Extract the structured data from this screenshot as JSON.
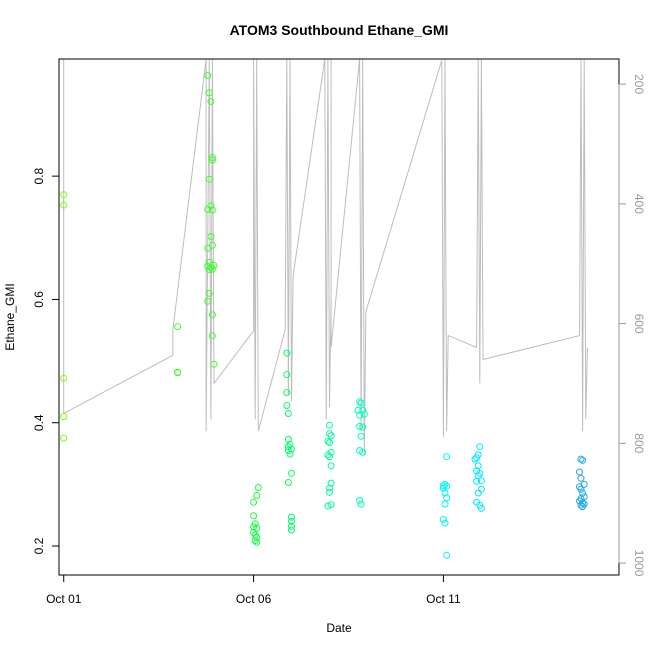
{
  "chart_data": {
    "type": "scatter",
    "title": "ATOM3 Southbound Ethane_GMI",
    "xlabel": "Date",
    "ylabel": "Ethane_GMI",
    "xlim": [
      "2017-09-30T21:00",
      "2017-10-15T15:00"
    ],
    "ylim": [
      0.153,
      0.99
    ],
    "x_ticks": [
      {
        "date": "2017-10-01",
        "label": "Oct 01"
      },
      {
        "date": "2017-10-06",
        "label": "Oct 06"
      },
      {
        "date": "2017-10-11",
        "label": "Oct 11"
      }
    ],
    "y_ticks": [
      0.2,
      0.4,
      0.6,
      0.8
    ],
    "y2_ticks": [
      200,
      400,
      600,
      800,
      1000
    ],
    "y2lim": [
      158,
      1020
    ],
    "grid": false,
    "legend": "none",
    "colors": {
      "oct01": "#7fff00",
      "oct04": "#3aff2a",
      "oct06": "#14ff40",
      "oct07": "#00ff66",
      "oct08": "#00ff99",
      "oct09": "#00ffbb",
      "oct11": "#00f7f7",
      "oct12": "#00e8ff",
      "oct15": "#1ca8e8",
      "pressure_line": "#bdbdbd"
    },
    "point_groups": [
      {
        "color_key": "oct01",
        "points": [
          [
            "2017-10-01T00:00",
            0.77
          ],
          [
            "2017-10-01T00:00",
            0.753
          ],
          [
            "2017-10-01T00:00",
            0.472
          ],
          [
            "2017-10-01T00:00",
            0.41
          ],
          [
            "2017-10-01T00:00",
            0.375
          ]
        ]
      },
      {
        "color_key": "oct04",
        "points": [
          [
            "2017-10-04T00:00",
            0.556
          ],
          [
            "2017-10-04T00:00",
            0.482
          ],
          [
            "2017-10-04T00:00",
            0.481
          ]
        ]
      },
      {
        "color_key": "oct04",
        "points": [
          [
            "2017-10-04T19:00",
            0.963
          ],
          [
            "2017-10-04T20:00",
            0.935
          ],
          [
            "2017-10-04T21:00",
            0.921
          ],
          [
            "2017-10-04T22:00",
            0.83
          ],
          [
            "2017-10-04T22:00",
            0.826
          ],
          [
            "2017-10-04T20:00",
            0.795
          ],
          [
            "2017-10-04T21:00",
            0.752
          ],
          [
            "2017-10-04T19:00",
            0.746
          ],
          [
            "2017-10-04T22:00",
            0.745
          ],
          [
            "2017-10-04T21:00",
            0.702
          ],
          [
            "2017-10-04T22:00",
            0.688
          ],
          [
            "2017-10-04T19:00",
            0.683
          ],
          [
            "2017-10-04T20:00",
            0.66
          ],
          [
            "2017-10-04T19:00",
            0.654
          ],
          [
            "2017-10-04T20:00",
            0.648
          ],
          [
            "2017-10-04T21:00",
            0.652
          ],
          [
            "2017-10-04T22:00",
            0.649
          ],
          [
            "2017-10-04T23:00",
            0.655
          ],
          [
            "2017-10-04T20:00",
            0.61
          ],
          [
            "2017-10-04T19:00",
            0.597
          ],
          [
            "2017-10-04T22:00",
            0.575
          ],
          [
            "2017-10-04T22:00",
            0.541
          ],
          [
            "2017-10-04T23:00",
            0.495
          ]
        ]
      },
      {
        "color_key": "oct06",
        "points": [
          [
            "2017-10-06T03:00",
            0.295
          ],
          [
            "2017-10-06T02:00",
            0.282
          ],
          [
            "2017-10-06T00:00",
            0.271
          ],
          [
            "2017-10-06T00:00",
            0.249
          ],
          [
            "2017-10-06T01:00",
            0.236
          ],
          [
            "2017-10-06T00:00",
            0.231
          ],
          [
            "2017-10-06T02:00",
            0.229
          ],
          [
            "2017-10-06T00:00",
            0.222
          ],
          [
            "2017-10-06T01:00",
            0.218
          ],
          [
            "2017-10-06T02:00",
            0.214
          ],
          [
            "2017-10-06T01:00",
            0.209
          ],
          [
            "2017-10-06T02:00",
            0.206
          ]
        ]
      },
      {
        "color_key": "oct07",
        "points": [
          [
            "2017-10-06T21:00",
            0.513
          ],
          [
            "2017-10-06T21:00",
            0.478
          ],
          [
            "2017-10-06T21:00",
            0.449
          ],
          [
            "2017-10-06T21:00",
            0.428
          ],
          [
            "2017-10-06T22:00",
            0.415
          ],
          [
            "2017-10-06T22:00",
            0.373
          ],
          [
            "2017-10-06T23:00",
            0.365
          ],
          [
            "2017-10-06T22:00",
            0.361
          ],
          [
            "2017-10-06T22:00",
            0.355
          ],
          [
            "2017-10-06T23:00",
            0.349
          ],
          [
            "2017-10-07T00:00",
            0.357
          ],
          [
            "2017-10-07T00:00",
            0.318
          ],
          [
            "2017-10-06T22:00",
            0.303
          ],
          [
            "2017-10-07T00:00",
            0.247
          ],
          [
            "2017-10-07T00:00",
            0.24
          ],
          [
            "2017-10-07T00:00",
            0.232
          ],
          [
            "2017-10-07T00:00",
            0.226
          ]
        ]
      },
      {
        "color_key": "oct08",
        "points": [
          [
            "2017-10-08T00:00",
            0.396
          ],
          [
            "2017-10-08T00:00",
            0.382
          ],
          [
            "2017-10-08T01:00",
            0.379
          ],
          [
            "2017-10-07T23:00",
            0.37
          ],
          [
            "2017-10-08T00:00",
            0.368
          ],
          [
            "2017-10-08T01:00",
            0.352
          ],
          [
            "2017-10-07T23:00",
            0.348
          ],
          [
            "2017-10-08T00:00",
            0.345
          ],
          [
            "2017-10-08T01:00",
            0.33
          ],
          [
            "2017-10-08T01:00",
            0.302
          ],
          [
            "2017-10-08T00:00",
            0.294
          ],
          [
            "2017-10-08T00:00",
            0.287
          ],
          [
            "2017-10-08T01:00",
            0.267
          ],
          [
            "2017-10-07T23:00",
            0.265
          ]
        ]
      },
      {
        "color_key": "oct09",
        "points": [
          [
            "2017-10-08T19:00",
            0.434
          ],
          [
            "2017-10-08T20:00",
            0.432
          ],
          [
            "2017-10-08T18:00",
            0.42
          ],
          [
            "2017-10-08T21:00",
            0.42
          ],
          [
            "2017-10-08T19:00",
            0.412
          ],
          [
            "2017-10-08T22:00",
            0.414
          ],
          [
            "2017-10-08T19:00",
            0.394
          ],
          [
            "2017-10-08T21:00",
            0.393
          ],
          [
            "2017-10-08T20:00",
            0.378
          ],
          [
            "2017-10-08T19:00",
            0.355
          ],
          [
            "2017-10-08T21:00",
            0.352
          ],
          [
            "2017-10-08T19:00",
            0.274
          ],
          [
            "2017-10-08T20:00",
            0.268
          ]
        ]
      },
      {
        "color_key": "oct11",
        "points": [
          [
            "2017-10-11T02:00",
            0.345
          ],
          [
            "2017-10-11T01:00",
            0.3
          ],
          [
            "2017-10-11T00:00",
            0.298
          ],
          [
            "2017-10-11T00:00",
            0.294
          ],
          [
            "2017-10-11T02:00",
            0.297
          ],
          [
            "2017-10-11T01:00",
            0.286
          ],
          [
            "2017-10-11T02:00",
            0.278
          ],
          [
            "2017-10-11T01:00",
            0.268
          ],
          [
            "2017-10-11T00:00",
            0.243
          ],
          [
            "2017-10-11T01:00",
            0.237
          ],
          [
            "2017-10-11T02:00",
            0.185
          ]
        ]
      },
      {
        "color_key": "oct12",
        "points": [
          [
            "2017-10-11T23:00",
            0.361
          ],
          [
            "2017-10-11T21:00",
            0.343
          ],
          [
            "2017-10-11T22:00",
            0.348
          ],
          [
            "2017-10-11T20:00",
            0.341
          ],
          [
            "2017-10-11T22:00",
            0.33
          ],
          [
            "2017-10-11T21:00",
            0.322
          ],
          [
            "2017-10-11T23:00",
            0.318
          ],
          [
            "2017-10-11T22:00",
            0.314
          ],
          [
            "2017-10-11T21:00",
            0.305
          ],
          [
            "2017-10-12T00:00",
            0.306
          ],
          [
            "2017-10-12T00:00",
            0.292
          ],
          [
            "2017-10-11T22:00",
            0.286
          ],
          [
            "2017-10-11T21:00",
            0.271
          ],
          [
            "2017-10-11T23:00",
            0.266
          ],
          [
            "2017-10-12T00:00",
            0.261
          ]
        ]
      },
      {
        "color_key": "oct15",
        "points": [
          [
            "2017-10-14T15:00",
            0.341
          ],
          [
            "2017-10-14T16:00",
            0.339
          ],
          [
            "2017-10-14T14:00",
            0.32
          ],
          [
            "2017-10-14T15:00",
            0.31
          ],
          [
            "2017-10-14T17:00",
            0.3
          ],
          [
            "2017-10-14T14:00",
            0.296
          ],
          [
            "2017-10-14T15:00",
            0.292
          ],
          [
            "2017-10-14T16:00",
            0.286
          ],
          [
            "2017-10-14T17:00",
            0.28
          ],
          [
            "2017-10-14T15:00",
            0.277
          ],
          [
            "2017-10-14T14:00",
            0.273
          ],
          [
            "2017-10-14T16:00",
            0.27
          ],
          [
            "2017-10-14T17:00",
            0.268
          ],
          [
            "2017-10-14T15:00",
            0.266
          ],
          [
            "2017-10-14T16:00",
            0.264
          ]
        ]
      }
    ],
    "pressure_trace": [
      [
        "2017-10-01T00:00",
        750
      ],
      [
        "2017-10-01T00:00",
        158
      ],
      [
        "2017-10-01T00:00",
        750
      ],
      [
        "2017-10-03T21:00",
        653
      ],
      [
        "2017-10-03T21:00",
        610
      ],
      [
        "2017-10-04T18:00",
        158
      ],
      [
        "2017-10-04T18:00",
        780
      ],
      [
        "2017-10-04T20:00",
        158
      ],
      [
        "2017-10-04T21:00",
        760
      ],
      [
        "2017-10-04T22:00",
        158
      ],
      [
        "2017-10-04T23:00",
        700
      ],
      [
        "2017-10-06T00:00",
        612
      ],
      [
        "2017-10-06T00:00",
        158
      ],
      [
        "2017-10-06T01:00",
        760
      ],
      [
        "2017-10-06T02:00",
        158
      ],
      [
        "2017-10-06T03:00",
        780
      ],
      [
        "2017-10-06T20:00",
        610
      ],
      [
        "2017-10-06T21:00",
        158
      ],
      [
        "2017-10-06T22:00",
        720
      ],
      [
        "2017-10-06T23:00",
        158
      ],
      [
        "2017-10-07T00:00",
        730
      ],
      [
        "2017-10-07T01:00",
        520
      ],
      [
        "2017-10-07T21:00",
        158
      ],
      [
        "2017-10-07T22:00",
        760
      ],
      [
        "2017-10-07T23:00",
        158
      ],
      [
        "2017-10-08T00:00",
        740
      ],
      [
        "2017-10-08T01:00",
        560
      ],
      [
        "2017-10-08T01:00",
        158
      ],
      [
        "2017-10-08T01:00",
        640
      ],
      [
        "2017-10-08T19:00",
        158
      ],
      [
        "2017-10-08T20:00",
        780
      ],
      [
        "2017-10-08T21:00",
        158
      ],
      [
        "2017-10-08T22:00",
        820
      ],
      [
        "2017-10-08T23:00",
        580
      ],
      [
        "2017-10-10T23:00",
        160
      ],
      [
        "2017-10-11T00:00",
        790
      ],
      [
        "2017-10-11T01:00",
        158
      ],
      [
        "2017-10-11T02:00",
        780
      ],
      [
        "2017-10-11T03:00",
        620
      ],
      [
        "2017-10-11T21:00",
        640
      ],
      [
        "2017-10-11T22:00",
        158
      ],
      [
        "2017-10-11T23:00",
        700
      ],
      [
        "2017-10-12T00:00",
        158
      ],
      [
        "2017-10-12T01:00",
        660
      ],
      [
        "2017-10-14T14:00",
        620
      ],
      [
        "2017-10-14T15:00",
        158
      ],
      [
        "2017-10-14T16:00",
        780
      ],
      [
        "2017-10-14T17:00",
        158
      ],
      [
        "2017-10-14T18:00",
        760
      ],
      [
        "2017-10-14T19:00",
        640
      ]
    ]
  }
}
